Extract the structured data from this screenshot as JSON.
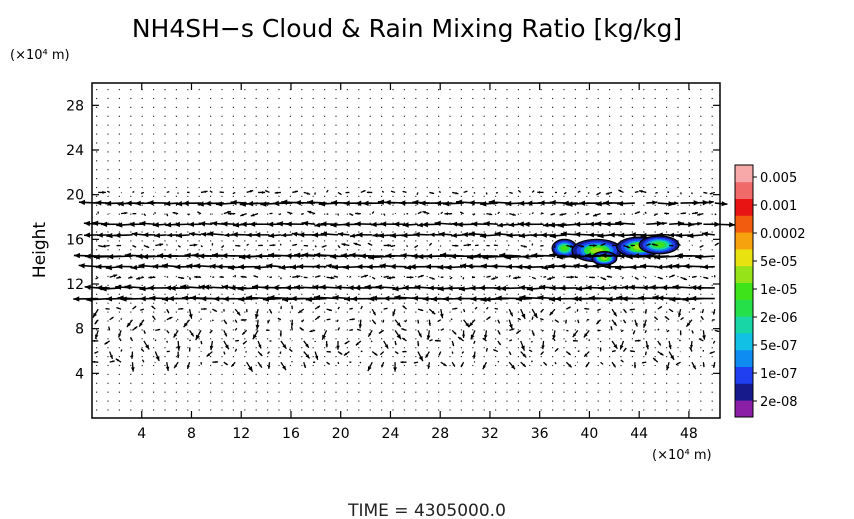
{
  "chart_data": {
    "type": "heatmap",
    "title": "NH4SH−s Cloud & Rain Mixing Ratio [kg/kg]",
    "ylabel": "Height",
    "y_unit": "(×10⁴ m)",
    "x_unit": "(×10⁴ m)",
    "xlim": [
      0,
      50.5
    ],
    "ylim": [
      0,
      30
    ],
    "x_ticks": [
      4,
      8,
      12,
      16,
      20,
      24,
      28,
      32,
      36,
      40,
      44,
      48
    ],
    "y_ticks": [
      4,
      8,
      12,
      16,
      20,
      24,
      28
    ],
    "x_tick_labels": [
      "4",
      "8",
      "12",
      "16",
      "20",
      "24",
      "28",
      "32",
      "36",
      "40",
      "44",
      "48"
    ],
    "y_tick_labels": [
      "4",
      "8",
      "12",
      "16",
      "20",
      "24",
      "28"
    ],
    "colorbar": {
      "labels": [
        "0.005",
        "0.001",
        "0.0002",
        "5e-05",
        "1e-05",
        "2e-06",
        "5e-07",
        "1e-07",
        "2e-08"
      ],
      "colors": [
        "#8b1fa5",
        "#161a8a",
        "#1f3ff0",
        "#0e8cf2",
        "#12c0e6",
        "#18d6a6",
        "#26e04a",
        "#3fe31a",
        "#96e31a",
        "#e8e210",
        "#f6a10e",
        "#f25c0e",
        "#e81414",
        "#f06a6a",
        "#f7a9a9"
      ]
    },
    "blobs": [
      {
        "x": 38.0,
        "y": 15.2,
        "rx": 1.0,
        "ry": 0.8,
        "level": 0.4
      },
      {
        "x": 40.6,
        "y": 15.0,
        "rx": 2.0,
        "ry": 1.0,
        "level": 0.55
      },
      {
        "x": 41.2,
        "y": 14.3,
        "rx": 1.0,
        "ry": 0.6,
        "level": 0.6
      },
      {
        "x": 44.0,
        "y": 15.3,
        "rx": 1.8,
        "ry": 0.9,
        "level": 0.5
      },
      {
        "x": 45.6,
        "y": 15.5,
        "rx": 1.6,
        "ry": 0.8,
        "level": 0.45
      }
    ],
    "flow": {
      "streams": [
        {
          "y": 11.0,
          "strength": 1.0
        },
        {
          "y": 12.0,
          "strength": 0.85
        },
        {
          "y": 13.2,
          "strength": 0.75
        },
        {
          "y": 14.6,
          "strength": 0.7
        },
        {
          "y": 16.0,
          "strength": 0.7
        },
        {
          "y": 17.6,
          "strength": 0.55
        },
        {
          "y": 19.1,
          "strength": 0.55
        }
      ]
    }
  },
  "footer": {
    "time_label": "TIME",
    "time_value": "4305000.0"
  }
}
